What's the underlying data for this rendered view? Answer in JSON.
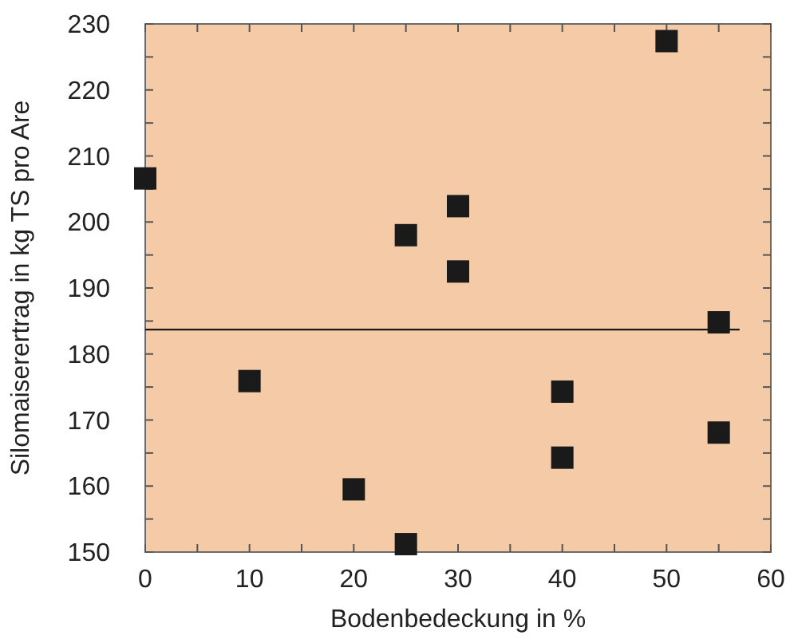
{
  "chart_data": {
    "type": "scatter",
    "xlabel": "Bodenbedeckung in %",
    "ylabel": "Silomaiserertrag in kg TS pro Are",
    "xlim": [
      0,
      60
    ],
    "ylim": [
      150,
      230
    ],
    "xticks": [
      0,
      {
        "value": 5,
        "label": null
      },
      10,
      {
        "value": 15,
        "label": null
      },
      20,
      {
        "value": 25,
        "label": null
      },
      30,
      {
        "value": 35,
        "label": null
      },
      40,
      {
        "value": 45,
        "label": null
      },
      50,
      {
        "value": 55,
        "label": null
      },
      60
    ],
    "yticks": [
      150,
      {
        "value": 155,
        "label": null
      },
      160,
      {
        "value": 165,
        "label": null
      },
      170,
      {
        "value": 175,
        "label": null
      },
      180,
      {
        "value": 185,
        "label": null
      },
      190,
      {
        "value": 195,
        "label": null
      },
      200,
      {
        "value": 205,
        "label": null
      },
      210,
      {
        "value": 215,
        "label": null
      },
      220,
      {
        "value": 225,
        "label": null
      },
      230
    ],
    "grid": false,
    "series": [
      {
        "marker": "square",
        "color": "#1a1a1a",
        "x": [
          0,
          10,
          20,
          25,
          25,
          30,
          30,
          40,
          40,
          50,
          55,
          55
        ],
        "values": [
          206.6,
          175.9,
          159.5,
          198,
          151.2,
          202.4,
          192.5,
          174.3,
          164.3,
          227.4,
          184.8,
          168.1
        ]
      },
      {
        "type": "line",
        "color": "#1a1a1a",
        "x": [
          0,
          57
        ],
        "values": [
          183.7,
          183.7
        ]
      }
    ]
  }
}
